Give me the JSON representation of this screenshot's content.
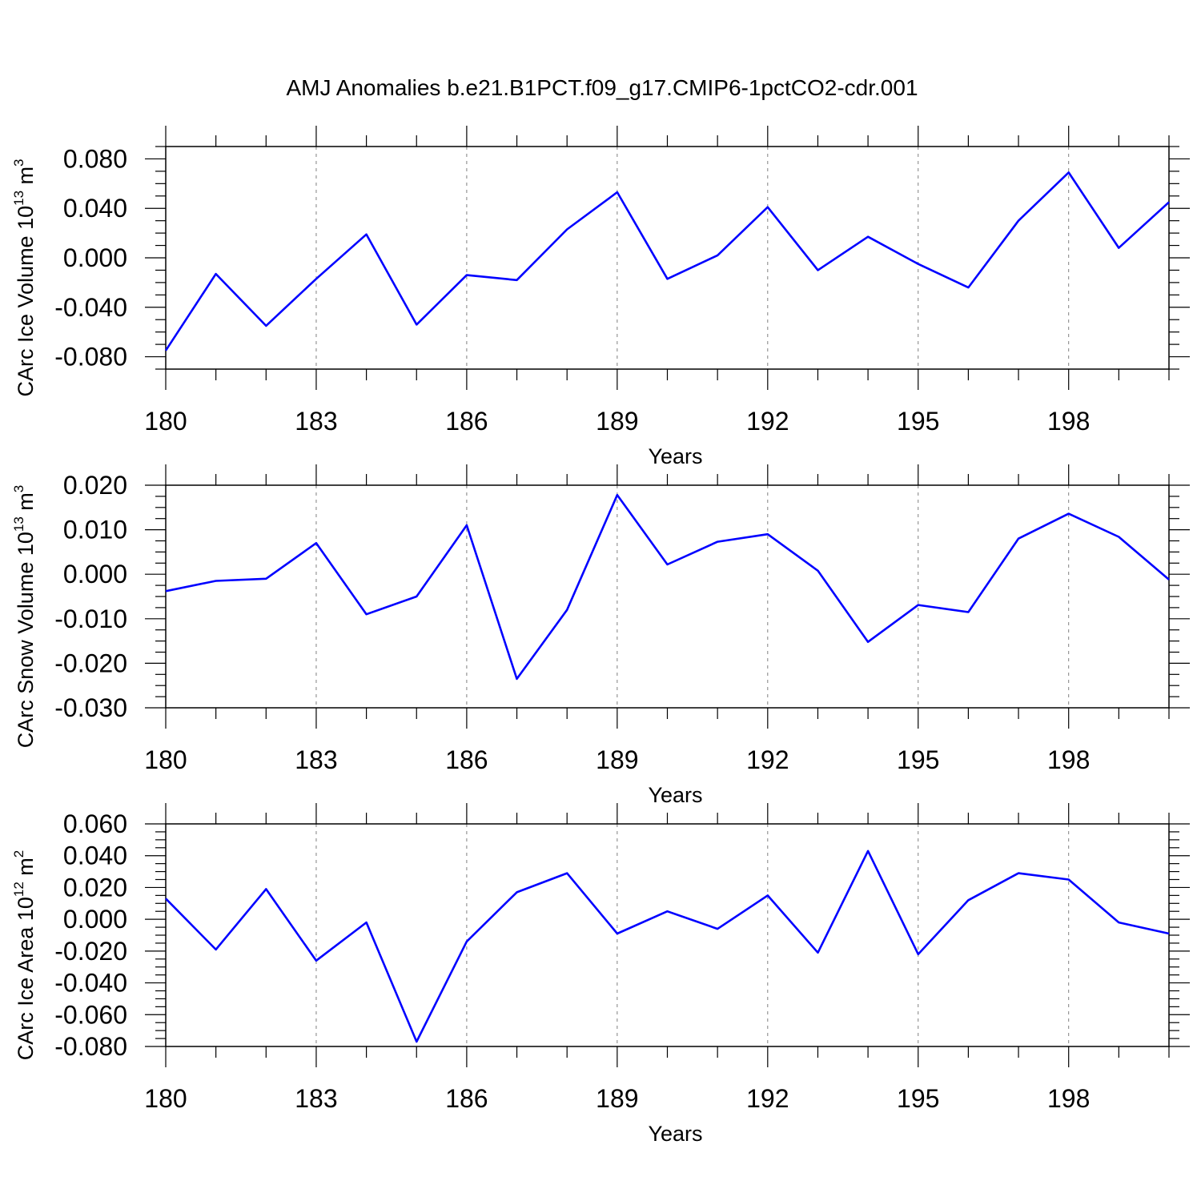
{
  "figure": {
    "title": "AMJ Anomalies b.e21.B1PCT.f09_g17.CMIP6-1pctCO2-cdr.001"
  },
  "colors": {
    "series_line": "#0000ff",
    "axes": "#000000",
    "gridline": "#808080"
  },
  "chart_data": [
    {
      "type": "line",
      "xlabel": "Years",
      "ylabel": {
        "text": "CArc Ice Volume 10",
        "sup1": "13",
        "mid": " m",
        "sup2": "3"
      },
      "xlim": [
        180,
        200
      ],
      "ylim": [
        -0.09,
        0.09
      ],
      "xticks": [
        180,
        183,
        186,
        189,
        192,
        195,
        198
      ],
      "xtick_labels": [
        "180",
        "183",
        "186",
        "189",
        "192",
        "195",
        "198"
      ],
      "yticks": [
        -0.08,
        -0.04,
        0.0,
        0.04,
        0.08
      ],
      "ytick_labels": [
        "-0.080",
        "-0.040",
        "0.000",
        "0.040",
        "0.080"
      ],
      "grid": "vertical dashed at labeled x ticks",
      "x": [
        180,
        181,
        182,
        183,
        184,
        185,
        186,
        187,
        188,
        189,
        190,
        191,
        192,
        193,
        194,
        195,
        196,
        197,
        198,
        199,
        200
      ],
      "series": [
        {
          "values": [
            -0.075,
            -0.013,
            -0.055,
            -0.017,
            0.019,
            -0.054,
            -0.014,
            -0.018,
            0.023,
            0.053,
            -0.017,
            0.002,
            0.041,
            -0.01,
            0.017,
            -0.005,
            -0.024,
            0.03,
            0.069,
            0.008,
            0.045
          ]
        }
      ]
    },
    {
      "type": "line",
      "xlabel": "Years",
      "ylabel": {
        "text": "CArc Snow Volume 10",
        "sup1": "13",
        "mid": " m",
        "sup2": "3"
      },
      "xlim": [
        180,
        200
      ],
      "ylim": [
        -0.03,
        0.02
      ],
      "xticks": [
        180,
        183,
        186,
        189,
        192,
        195,
        198
      ],
      "xtick_labels": [
        "180",
        "183",
        "186",
        "189",
        "192",
        "195",
        "198"
      ],
      "yticks": [
        -0.03,
        -0.02,
        -0.01,
        0.0,
        0.01,
        0.02
      ],
      "ytick_labels": [
        "-0.030",
        "-0.020",
        "-0.010",
        "0.000",
        "0.010",
        "0.020"
      ],
      "grid": "vertical dashed at labeled x ticks",
      "x": [
        180,
        181,
        182,
        183,
        184,
        185,
        186,
        187,
        188,
        189,
        190,
        191,
        192,
        193,
        194,
        195,
        196,
        197,
        198,
        199,
        200
      ],
      "series": [
        {
          "values": [
            -0.0038,
            -0.0015,
            -0.001,
            0.007,
            -0.009,
            -0.005,
            0.011,
            -0.0235,
            -0.008,
            0.0178,
            0.0022,
            0.0073,
            0.009,
            0.0008,
            -0.0152,
            -0.0069,
            -0.0085,
            0.008,
            0.0136,
            0.0084,
            -0.0012
          ]
        }
      ]
    },
    {
      "type": "line",
      "xlabel": "Years",
      "ylabel": {
        "text": "CArc Ice Area 10",
        "sup1": "12",
        "mid": " m",
        "sup2": "2"
      },
      "xlim": [
        180,
        200
      ],
      "ylim": [
        -0.08,
        0.06
      ],
      "xticks": [
        180,
        183,
        186,
        189,
        192,
        195,
        198
      ],
      "xtick_labels": [
        "180",
        "183",
        "186",
        "189",
        "192",
        "195",
        "198"
      ],
      "yticks": [
        -0.08,
        -0.06,
        -0.04,
        -0.02,
        0.0,
        0.02,
        0.04,
        0.06
      ],
      "ytick_labels": [
        "-0.080",
        "-0.060",
        "-0.040",
        "-0.020",
        "0.000",
        "0.020",
        "0.040",
        "0.060"
      ],
      "grid": "vertical dashed at labeled x ticks",
      "x": [
        180,
        181,
        182,
        183,
        184,
        185,
        186,
        187,
        188,
        189,
        190,
        191,
        192,
        193,
        194,
        195,
        196,
        197,
        198,
        199,
        200
      ],
      "series": [
        {
          "values": [
            0.013,
            -0.019,
            0.019,
            -0.026,
            -0.002,
            -0.077,
            -0.014,
            0.017,
            0.029,
            -0.009,
            0.005,
            -0.006,
            0.015,
            -0.021,
            0.043,
            -0.022,
            0.012,
            0.029,
            0.025,
            -0.002,
            -0.009
          ]
        }
      ]
    }
  ]
}
